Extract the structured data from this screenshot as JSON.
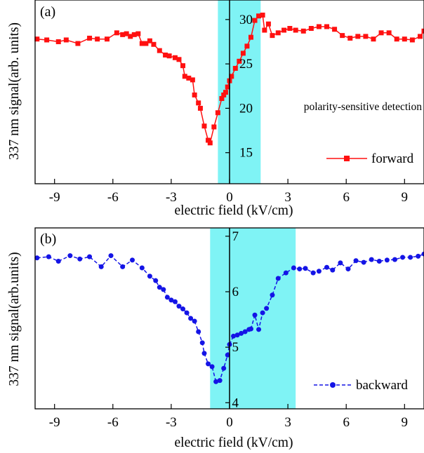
{
  "chart_data": [
    {
      "panel_label": "(a)",
      "type": "line",
      "xlabel": "electric field (kV/cm)",
      "ylabel": "337 nm signal(arb. units)",
      "annotation": "polarity-sensitive detection",
      "xlim": [
        -10,
        10
      ],
      "ylim": [
        11.5,
        32.2
      ],
      "x_ticks": [
        -9,
        -6,
        -3,
        0,
        3,
        6,
        9
      ],
      "x_tick_labels": [
        "-9",
        "-6",
        "-3",
        "0",
        "3",
        "6",
        "9"
      ],
      "y_ticks": [
        15,
        20,
        25,
        30
      ],
      "y_tick_labels": [
        "15",
        "20",
        "25",
        "30"
      ],
      "highlight_x": [
        -0.6,
        1.6
      ],
      "highlight_color": "#7ff3f5",
      "legend_position": "bottom-right",
      "series": [
        {
          "name": "forward",
          "color": "#ff1010",
          "marker": "square",
          "x": [
            -9.9,
            -9.4,
            -8.8,
            -8.4,
            -7.8,
            -7.2,
            -6.8,
            -6.3,
            -5.8,
            -5.5,
            -5.3,
            -5.1,
            -4.9,
            -4.7,
            -4.5,
            -4.3,
            -4.1,
            -3.9,
            -3.6,
            -3.3,
            -3.1,
            -2.8,
            -2.6,
            -2.4,
            -2.3,
            -2.1,
            -1.9,
            -1.8,
            -1.6,
            -1.5,
            -1.3,
            -1.1,
            -1.0,
            -0.8,
            -0.6,
            -0.4,
            -0.3,
            -0.2,
            -0.1,
            0.0,
            0.1,
            0.3,
            0.5,
            0.7,
            0.9,
            1.1,
            1.3,
            1.5,
            1.7,
            1.8,
            2.0,
            2.2,
            2.5,
            2.8,
            3.1,
            3.4,
            3.8,
            4.2,
            4.6,
            5.0,
            5.4,
            5.8,
            6.2,
            6.6,
            7.0,
            7.4,
            7.8,
            8.2,
            8.6,
            9.0,
            9.4,
            9.8,
            10.0
          ],
          "y": [
            27.8,
            27.7,
            27.5,
            27.7,
            27.3,
            27.9,
            27.8,
            27.8,
            28.5,
            28.3,
            28.4,
            28.1,
            28.3,
            28.4,
            27.3,
            27.3,
            27.6,
            27.2,
            26.5,
            26.0,
            25.9,
            25.7,
            25.5,
            24.8,
            23.6,
            23.4,
            23.2,
            21.5,
            20.6,
            20.0,
            18.0,
            16.4,
            16.1,
            17.9,
            19.5,
            21.1,
            21.5,
            21.8,
            22.4,
            23.1,
            23.6,
            24.5,
            25.3,
            26.2,
            27.0,
            28.0,
            29.9,
            30.4,
            30.5,
            28.8,
            29.5,
            28.2,
            28.5,
            28.8,
            29.0,
            28.8,
            28.7,
            29.0,
            29.2,
            29.2,
            28.9,
            28.2,
            27.9,
            28.1,
            28.1,
            27.8,
            28.5,
            28.5,
            27.8,
            27.8,
            27.7,
            28.1,
            28.7
          ]
        }
      ]
    },
    {
      "panel_label": "(b)",
      "type": "line",
      "xlabel": "electric field (kV/cm)",
      "ylabel": "337 nm signal(arb.units)",
      "xlim": [
        -10,
        10
      ],
      "ylim": [
        3.89,
        7.15
      ],
      "x_ticks": [
        -9,
        -6,
        -3,
        0,
        3,
        6,
        9
      ],
      "x_tick_labels": [
        "-9",
        "-6",
        "-3",
        "0",
        "3",
        "6",
        "9"
      ],
      "y_ticks": [
        4,
        5,
        6,
        7
      ],
      "y_tick_labels": [
        "4",
        "5",
        "6",
        "7"
      ],
      "highlight_x": [
        -1.0,
        3.4
      ],
      "highlight_color": "#7ff3f5",
      "legend_position": "bottom-right",
      "series": [
        {
          "name": "backward",
          "color": "#1414e6",
          "marker": "circle",
          "x": [
            -9.9,
            -9.3,
            -8.8,
            -8.2,
            -7.7,
            -7.2,
            -6.6,
            -6.1,
            -5.5,
            -5.0,
            -4.5,
            -4.1,
            -3.8,
            -3.6,
            -3.4,
            -3.2,
            -3.0,
            -2.8,
            -2.6,
            -2.4,
            -2.2,
            -2.0,
            -1.8,
            -1.6,
            -1.4,
            -1.3,
            -1.1,
            -0.9,
            -0.7,
            -0.5,
            -0.3,
            -0.1,
            0.0,
            0.2,
            0.4,
            0.6,
            0.8,
            1.0,
            1.1,
            1.3,
            1.5,
            1.7,
            1.9,
            2.2,
            2.5,
            2.9,
            3.3,
            3.6,
            3.9,
            4.3,
            4.6,
            5.0,
            5.3,
            5.7,
            6.1,
            6.5,
            6.9,
            7.3,
            7.7,
            8.1,
            8.5,
            8.9,
            9.3,
            9.7,
            10.0
          ],
          "y": [
            6.61,
            6.63,
            6.55,
            6.65,
            6.59,
            6.63,
            6.45,
            6.65,
            6.45,
            6.57,
            6.43,
            6.28,
            6.2,
            6.08,
            6.04,
            5.9,
            5.85,
            5.82,
            5.74,
            5.69,
            5.62,
            5.52,
            5.47,
            5.28,
            5.08,
            4.89,
            4.7,
            4.65,
            4.38,
            4.4,
            4.62,
            4.86,
            5.05,
            5.2,
            5.22,
            5.25,
            5.28,
            5.32,
            5.33,
            5.58,
            5.32,
            5.62,
            5.7,
            5.94,
            6.24,
            6.34,
            6.43,
            6.41,
            6.42,
            6.34,
            6.37,
            6.44,
            6.39,
            6.52,
            6.41,
            6.56,
            6.53,
            6.58,
            6.55,
            6.57,
            6.58,
            6.62,
            6.62,
            6.64,
            6.68
          ]
        }
      ]
    }
  ]
}
